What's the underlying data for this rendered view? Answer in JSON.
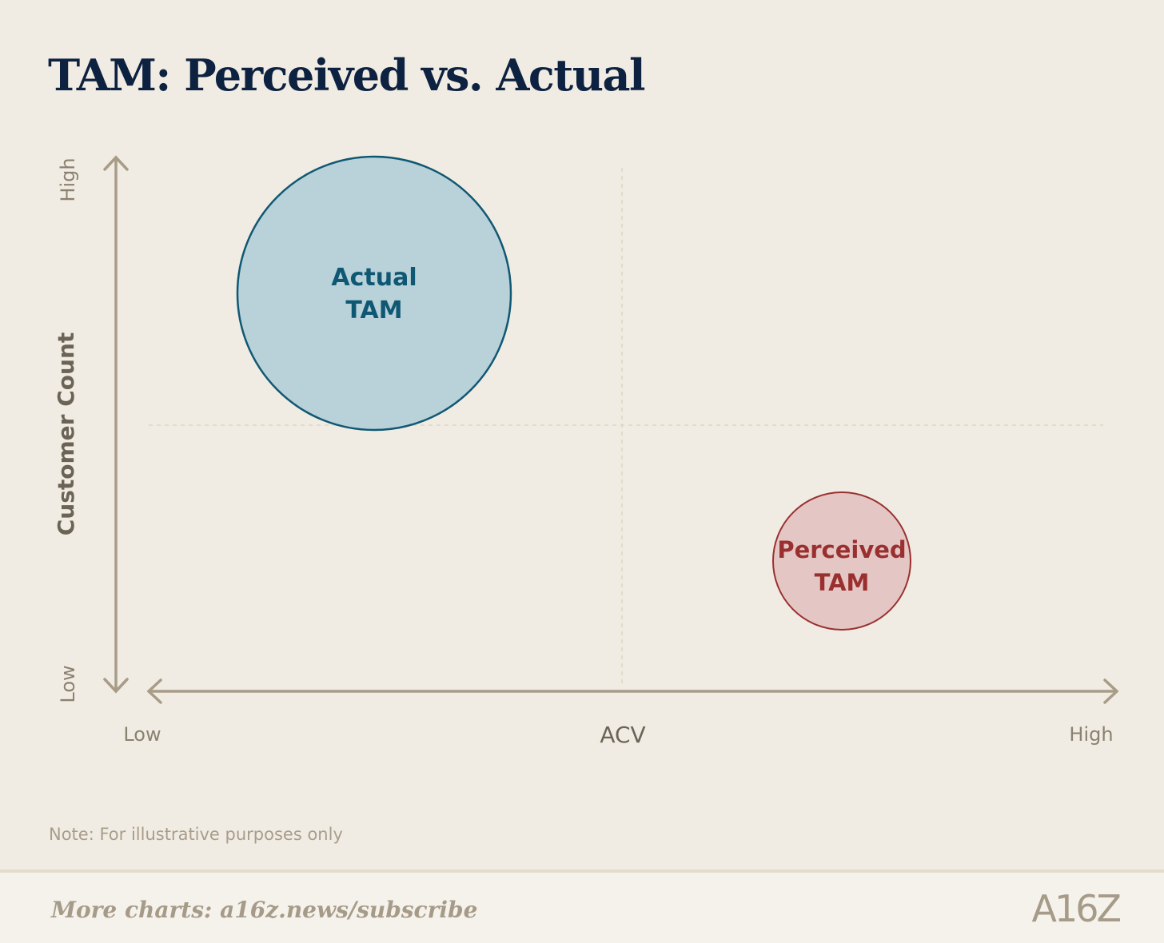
{
  "title": "TAM: Perceived vs. Actual",
  "chart_data": {
    "type": "scatter",
    "title": "TAM: Perceived vs. Actual",
    "xlabel": "ACV",
    "ylabel": "Customer Count",
    "x_ticks": [
      "Low",
      "High"
    ],
    "y_ticks": [
      "Low",
      "High"
    ],
    "quadrant_gridlines": true,
    "bubbles": [
      {
        "label_line1": "Actual",
        "label_line2": "TAM",
        "x": "Low",
        "y": "High",
        "size": "large",
        "fill": "#b9d1d9",
        "stroke": "#0f5873",
        "text_color": "#0f5873"
      },
      {
        "label_line1": "Perceived",
        "label_line2": "TAM",
        "x": "High",
        "y": "Low",
        "size": "small",
        "fill": "#e4c7c5",
        "stroke": "#99302f",
        "text_color": "#99302f"
      }
    ],
    "axis_color": "#a89c87"
  },
  "note": "Note: For illustrative purposes only",
  "footer": {
    "cta": "More charts: a16z.news/subscribe",
    "logo": "A16Z"
  }
}
